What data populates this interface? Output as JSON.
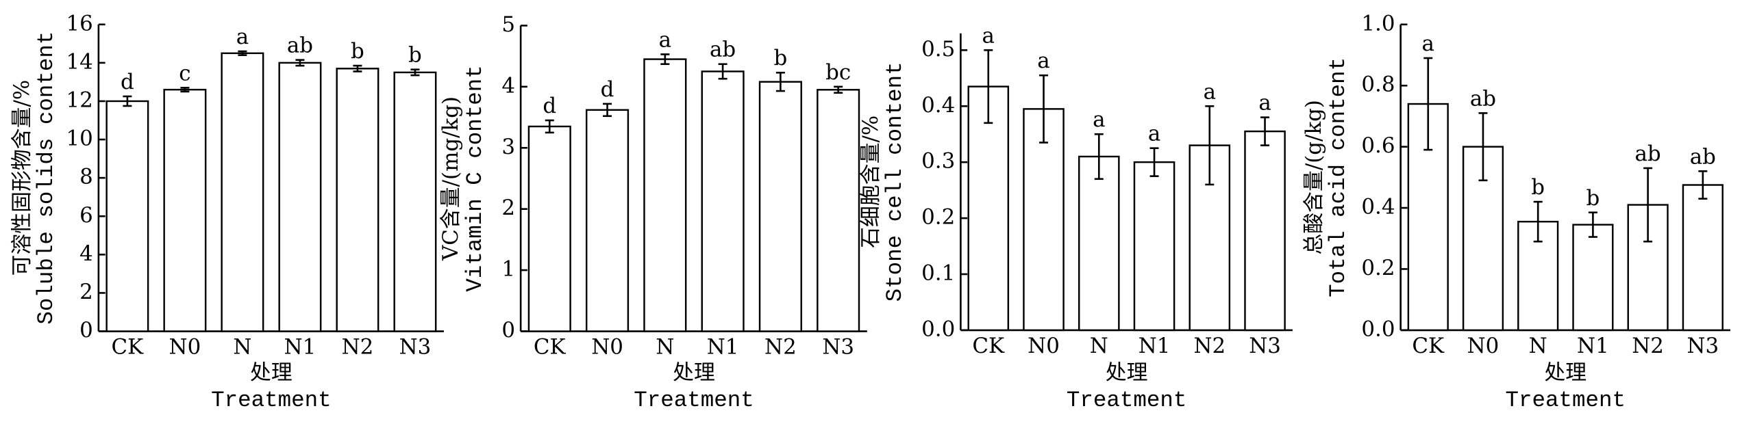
{
  "chart_data": [
    {
      "type": "bar",
      "ylabel": [
        "可溶性固形物含量/%",
        "Soluble solids content"
      ],
      "xlabel": [
        "处理",
        "Treatment"
      ],
      "categories": [
        "CK",
        "N0",
        "N",
        "N1",
        "N2",
        "N3"
      ],
      "values": [
        12.0,
        12.6,
        14.5,
        14.0,
        13.7,
        13.5
      ],
      "errors": [
        0.25,
        0.1,
        0.1,
        0.15,
        0.15,
        0.15
      ],
      "letters": [
        "d",
        "c",
        "a",
        "ab",
        "b",
        "b"
      ],
      "ylim": [
        0,
        16
      ],
      "yticks": [
        0,
        2,
        4,
        6,
        8,
        10,
        12,
        14,
        16
      ]
    },
    {
      "type": "bar",
      "ylabel": [
        "VC含量/(mg/kg)",
        "Vitamin C content"
      ],
      "xlabel": [
        "处理",
        "Treatment"
      ],
      "categories": [
        "CK",
        "N0",
        "N",
        "N1",
        "N2",
        "N3"
      ],
      "values": [
        3.35,
        3.62,
        4.45,
        4.25,
        4.08,
        3.95
      ],
      "errors": [
        0.1,
        0.1,
        0.08,
        0.12,
        0.15,
        0.05
      ],
      "letters": [
        "d",
        "d",
        "a",
        "ab",
        "b",
        "bc"
      ],
      "ylim": [
        0,
        5
      ],
      "yticks": [
        0,
        1,
        2,
        3,
        4,
        5
      ]
    },
    {
      "type": "bar",
      "ylabel": [
        "石细胞含量/%",
        "Stone cell content"
      ],
      "xlabel": [
        "处理",
        "Treatment"
      ],
      "categories": [
        "CK",
        "N0",
        "N",
        "N1",
        "N2",
        "N3"
      ],
      "values": [
        0.435,
        0.395,
        0.31,
        0.3,
        0.33,
        0.355
      ],
      "errors": [
        0.065,
        0.06,
        0.04,
        0.025,
        0.07,
        0.025
      ],
      "letters": [
        "a",
        "a",
        "a",
        "a",
        "a",
        "a"
      ],
      "ylim": [
        0,
        0.53
      ],
      "yticks": [
        {
          "value": 0,
          "label": "0.0"
        },
        0.1,
        0.2,
        0.3,
        0.4,
        0.5
      ]
    },
    {
      "type": "bar",
      "ylabel": [
        "总酸含量/(g/kg)",
        "Total acid content"
      ],
      "xlabel": [
        "处理",
        "Treatment"
      ],
      "categories": [
        "CK",
        "N0",
        "N",
        "N1",
        "N2",
        "N3"
      ],
      "values": [
        0.74,
        0.6,
        0.355,
        0.345,
        0.41,
        0.475
      ],
      "errors": [
        0.15,
        0.11,
        0.065,
        0.04,
        0.12,
        0.045
      ],
      "letters": [
        "a",
        "ab",
        "b",
        "b",
        "ab",
        "ab"
      ],
      "ylim": [
        0,
        1.0
      ],
      "yticks": [
        {
          "value": 0,
          "label": "0.0"
        },
        0.2,
        0.4,
        0.6,
        0.8,
        {
          "value": 1.0,
          "label": "1.0"
        }
      ]
    }
  ]
}
